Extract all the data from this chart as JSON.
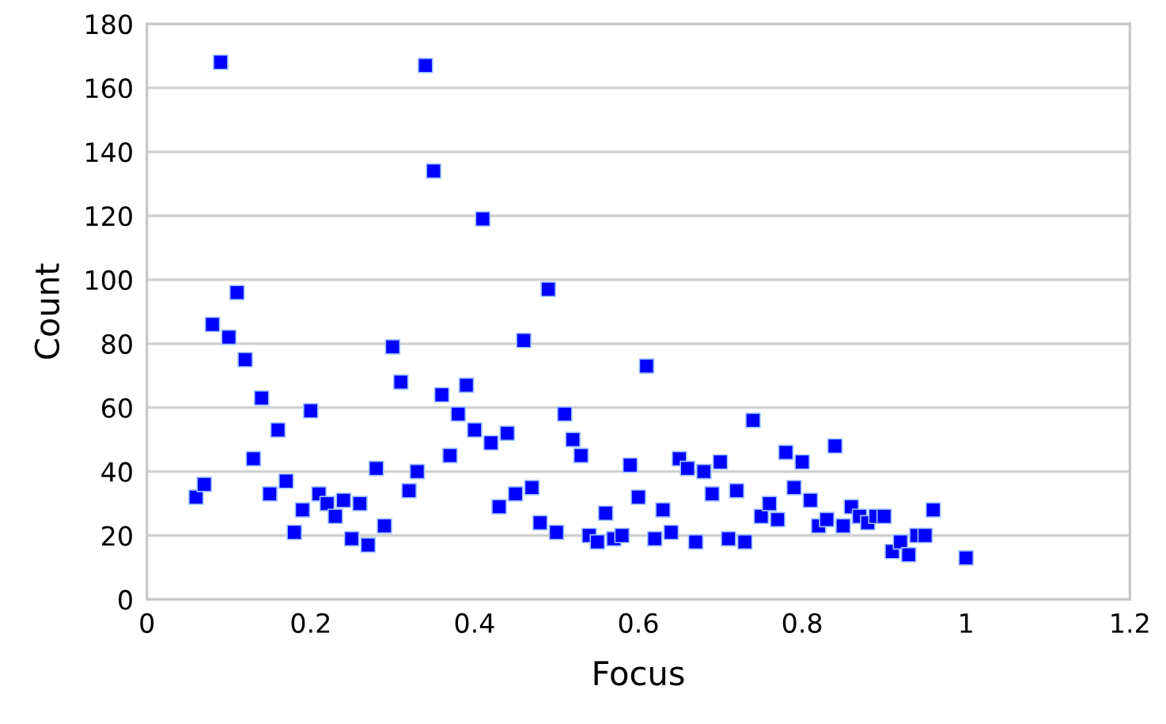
{
  "chart_data": {
    "type": "scatter",
    "xlabel": "Focus",
    "ylabel": "Count",
    "xlim": [
      0,
      1.2
    ],
    "xticks": [
      0,
      0.2,
      0.4,
      0.6,
      0.8,
      1,
      1.2
    ],
    "ylim": [
      0,
      180
    ],
    "yticks": [
      0,
      20,
      40,
      60,
      80,
      100,
      120,
      140,
      160,
      180
    ],
    "grid": "y",
    "marker": "square",
    "legend": false,
    "series": [
      {
        "color": "#0000ff",
        "x": [
          0.06,
          0.07,
          0.08,
          0.09,
          0.1,
          0.11,
          0.12,
          0.13,
          0.14,
          0.15,
          0.16,
          0.17,
          0.18,
          0.19,
          0.2,
          0.21,
          0.22,
          0.23,
          0.24,
          0.25,
          0.26,
          0.27,
          0.28,
          0.29,
          0.3,
          0.31,
          0.32,
          0.33,
          0.34,
          0.35,
          0.36,
          0.37,
          0.38,
          0.39,
          0.4,
          0.41,
          0.42,
          0.43,
          0.44,
          0.45,
          0.46,
          0.47,
          0.48,
          0.49,
          0.5,
          0.51,
          0.52,
          0.53,
          0.54,
          0.55,
          0.56,
          0.57,
          0.58,
          0.59,
          0.6,
          0.61,
          0.62,
          0.63,
          0.64,
          0.65,
          0.66,
          0.67,
          0.68,
          0.69,
          0.7,
          0.71,
          0.72,
          0.73,
          0.74,
          0.75,
          0.76,
          0.77,
          0.78,
          0.79,
          0.8,
          0.81,
          0.82,
          0.83,
          0.84,
          0.85,
          0.86,
          0.87,
          0.88,
          0.89,
          0.9,
          0.91,
          0.92,
          0.93,
          0.94,
          0.95,
          0.96,
          1.0
        ],
        "values": [
          32,
          36,
          86,
          168,
          82,
          96,
          75,
          44,
          63,
          33,
          53,
          37,
          21,
          28,
          59,
          33,
          30,
          26,
          31,
          19,
          30,
          17,
          41,
          23,
          79,
          68,
          34,
          40,
          167,
          134,
          64,
          45,
          58,
          67,
          53,
          119,
          49,
          29,
          52,
          33,
          81,
          35,
          24,
          97,
          21,
          58,
          50,
          45,
          20,
          18,
          27,
          19,
          20,
          42,
          32,
          73,
          19,
          28,
          21,
          44,
          41,
          18,
          40,
          33,
          43,
          19,
          34,
          18,
          56,
          26,
          30,
          25,
          46,
          35,
          43,
          31,
          23,
          25,
          48,
          23,
          29,
          26,
          24,
          26,
          26,
          15,
          18,
          14,
          20,
          20,
          28,
          13
        ]
      }
    ]
  }
}
